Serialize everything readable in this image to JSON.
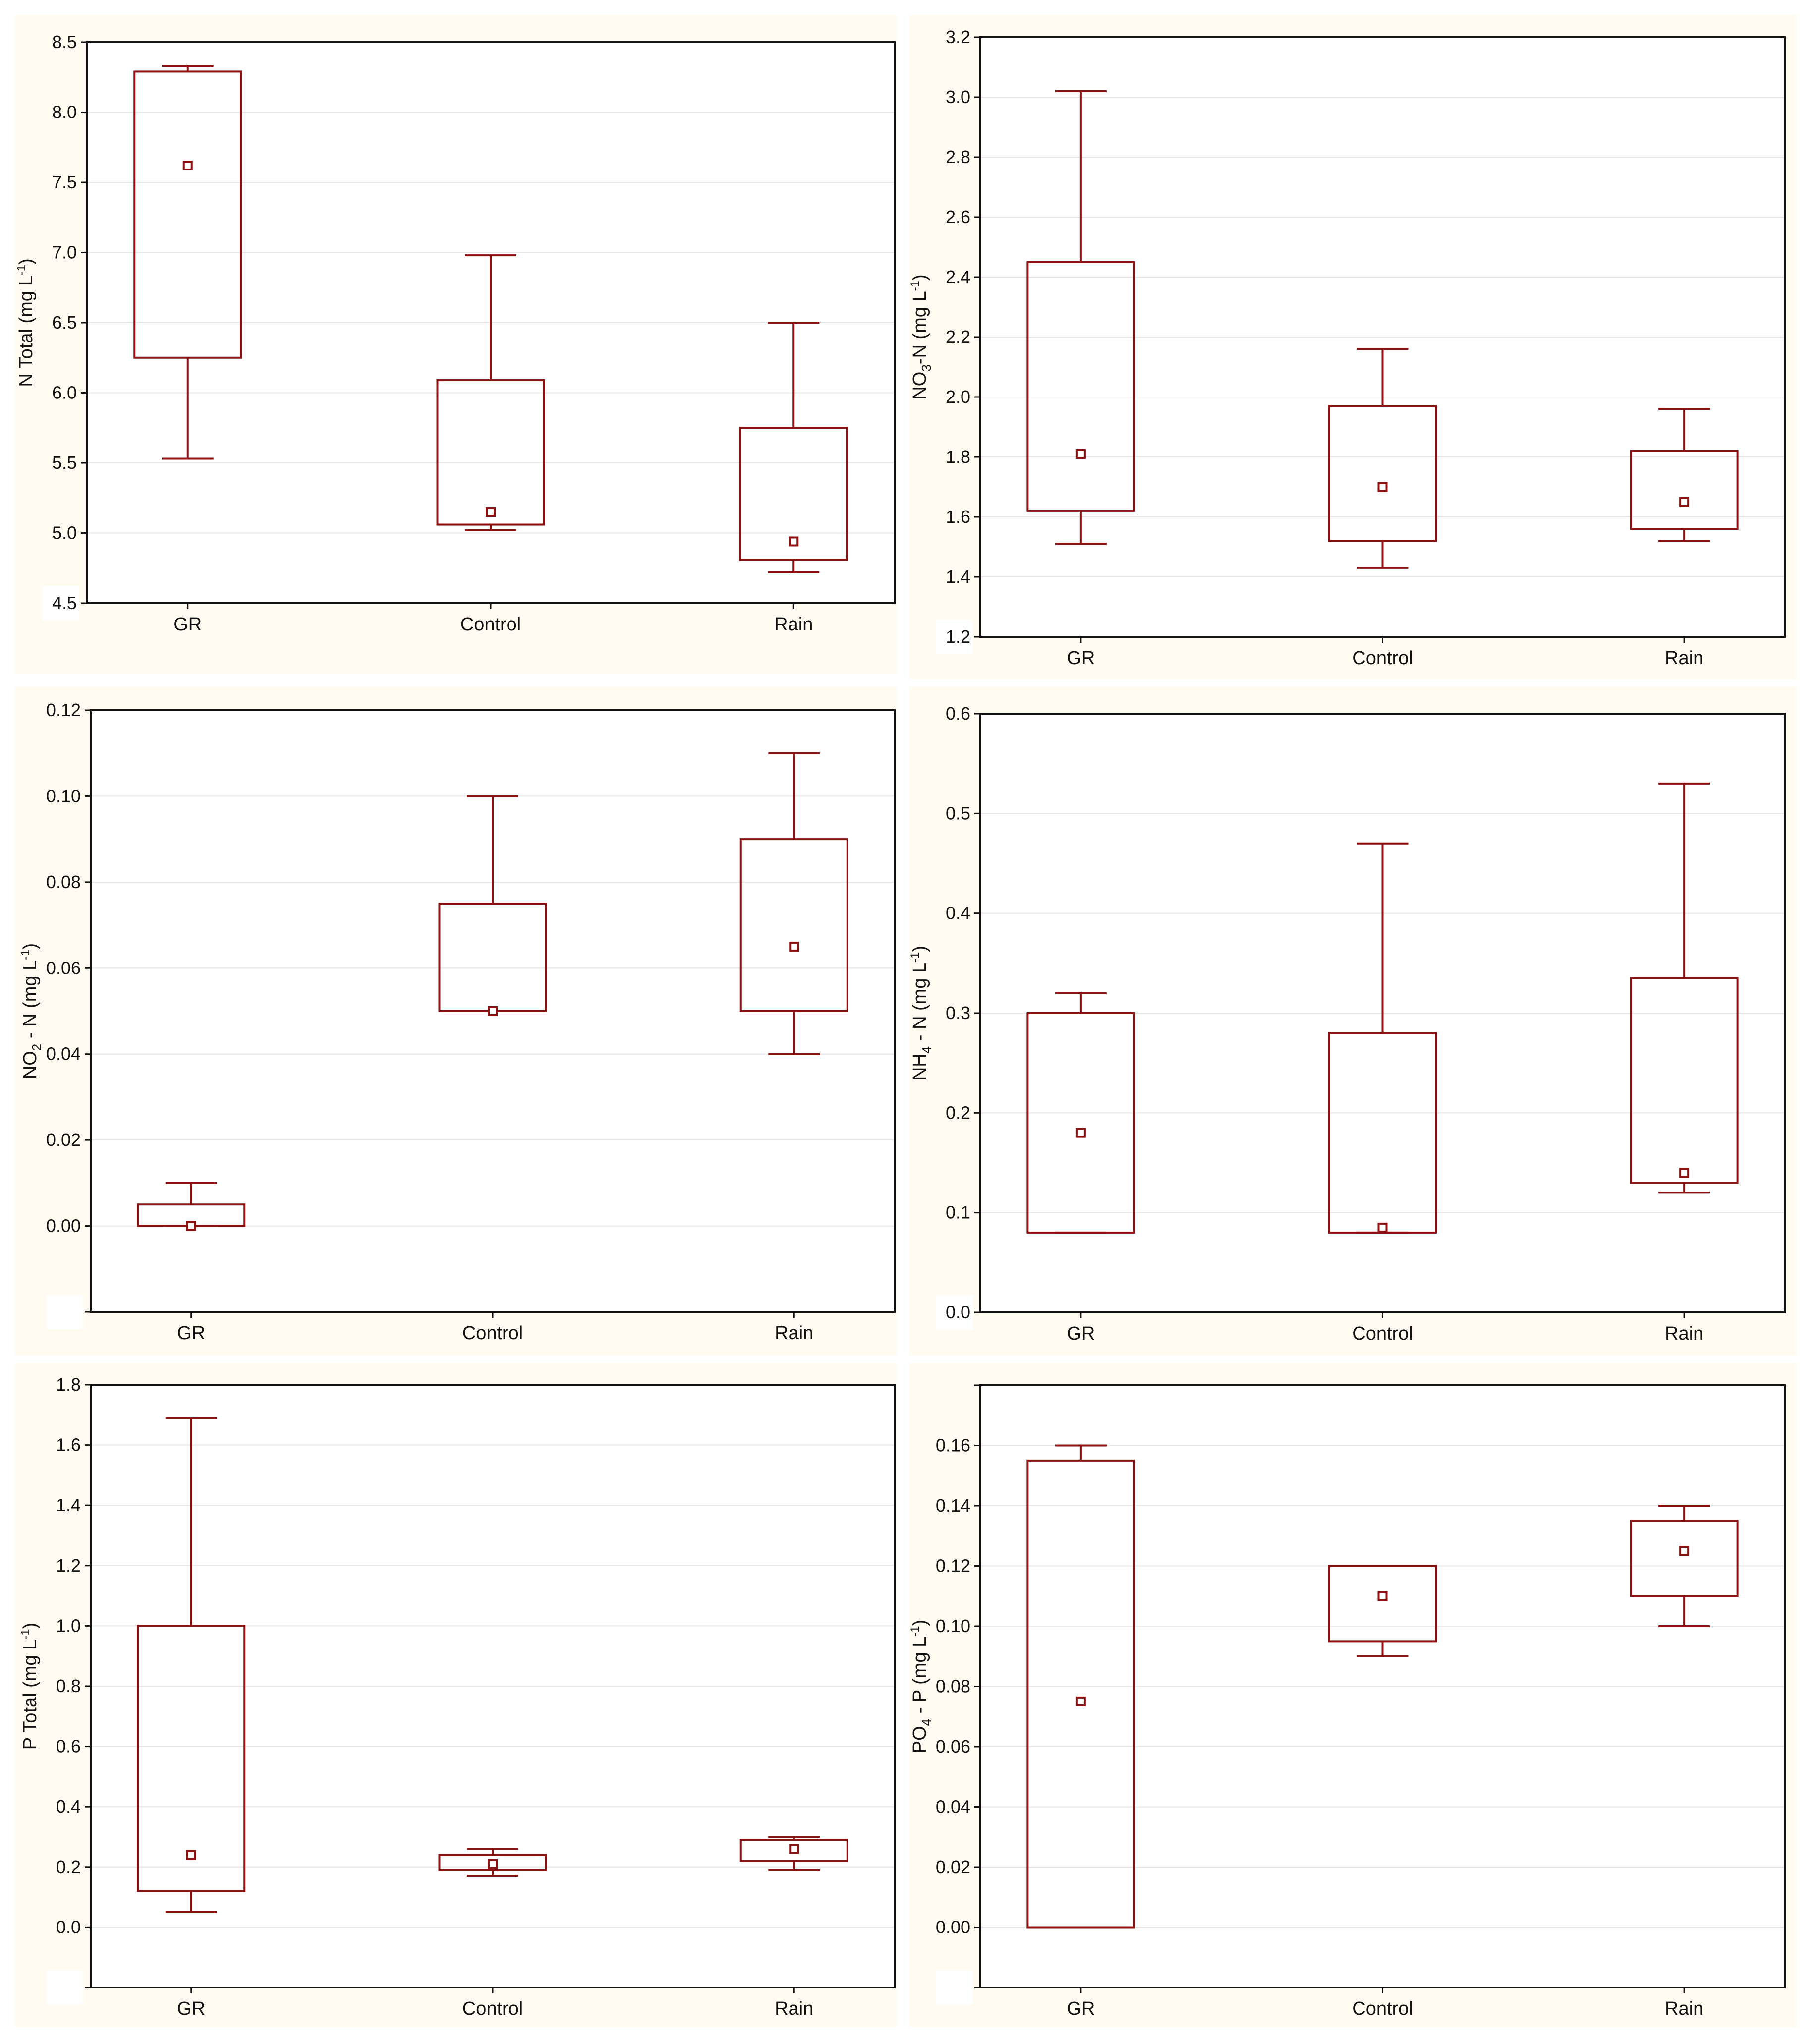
{
  "colors": {
    "box": "#8b1212",
    "panel_background": "#fffbf0",
    "axis": "#111111",
    "grid": "#e6e6e6"
  },
  "chart_data": [
    {
      "type": "box",
      "ylabel": {
        "pre": "N Total (mg L",
        "sup": "-1",
        "post": ")"
      },
      "categories": [
        "GR",
        "Control",
        "Rain"
      ],
      "ylim": [
        4.5,
        8.5
      ],
      "yticks": [
        "4.5",
        "5.0",
        "5.5",
        "6.0",
        "6.5",
        "7.0",
        "7.5",
        "8.0",
        "8.5"
      ],
      "grid": true,
      "boxes": [
        {
          "min": 5.53,
          "q1": 6.25,
          "median": 7.62,
          "q3": 8.29,
          "max": 8.33
        },
        {
          "min": 5.02,
          "q1": 5.06,
          "median": 5.15,
          "q3": 6.09,
          "max": 6.98
        },
        {
          "min": 4.72,
          "q1": 4.81,
          "median": 4.94,
          "q3": 5.75,
          "max": 6.5
        }
      ]
    },
    {
      "type": "box",
      "ylabel": {
        "pre": "NO",
        "sub": "3",
        "mid": "-N (mg L",
        "sup": "-1",
        "post": ")"
      },
      "categories": [
        "GR",
        "Control",
        "Rain"
      ],
      "ylim": [
        1.2,
        3.2
      ],
      "yticks": [
        "1.2",
        "1.4",
        "1.6",
        "1.8",
        "2.0",
        "2.2",
        "2.4",
        "2.6",
        "2.8",
        "3.0",
        "3.2"
      ],
      "grid": true,
      "boxes": [
        {
          "min": 1.51,
          "q1": 1.62,
          "median": 1.81,
          "q3": 2.45,
          "max": 3.02
        },
        {
          "min": 1.43,
          "q1": 1.52,
          "median": 1.7,
          "q3": 1.97,
          "max": 2.16
        },
        {
          "min": 1.52,
          "q1": 1.56,
          "median": 1.65,
          "q3": 1.82,
          "max": 1.96
        }
      ]
    },
    {
      "type": "box",
      "ylabel": {
        "pre": "NO",
        "sub": "2",
        "mid": " - N (mg L",
        "sup": "-1",
        "post": ")"
      },
      "categories": [
        "GR",
        "Control",
        "Rain"
      ],
      "ylim": [
        -0.02,
        0.12
      ],
      "yticks": [
        "",
        "0.00",
        "0.02",
        "0.04",
        "0.06",
        "0.08",
        "0.10",
        "0.12"
      ],
      "grid": true,
      "boxes": [
        {
          "min": 0.0,
          "q1": 0.0,
          "median": 0.0,
          "q3": 0.005,
          "max": 0.01
        },
        {
          "min": 0.05,
          "q1": 0.05,
          "median": 0.05,
          "q3": 0.075,
          "max": 0.1
        },
        {
          "min": 0.04,
          "q1": 0.05,
          "median": 0.065,
          "q3": 0.09,
          "max": 0.11
        }
      ]
    },
    {
      "type": "box",
      "ylabel": {
        "pre": "NH",
        "sub": "4",
        "mid": " - N (mg L",
        "sup": "-1",
        "post": ")"
      },
      "categories": [
        "GR",
        "Control",
        "Rain"
      ],
      "ylim": [
        0.0,
        0.6
      ],
      "yticks": [
        "0.0",
        "0.1",
        "0.2",
        "0.3",
        "0.4",
        "0.5",
        "0.6"
      ],
      "grid": true,
      "boxes": [
        {
          "min": 0.08,
          "q1": 0.08,
          "median": 0.18,
          "q3": 0.3,
          "max": 0.32
        },
        {
          "min": 0.08,
          "q1": 0.08,
          "median": 0.085,
          "q3": 0.28,
          "max": 0.47
        },
        {
          "min": 0.12,
          "q1": 0.13,
          "median": 0.14,
          "q3": 0.335,
          "max": 0.53
        }
      ]
    },
    {
      "type": "box",
      "ylabel": {
        "pre": "P Total (mg L",
        "sup": "-1",
        "post": ")"
      },
      "categories": [
        "GR",
        "Control",
        "Rain"
      ],
      "ylim": [
        -0.2,
        1.8
      ],
      "yticks": [
        "",
        "0.0",
        "0.2",
        "0.4",
        "0.6",
        "0.8",
        "1.0",
        "1.2",
        "1.4",
        "1.6",
        "1.8"
      ],
      "grid": true,
      "boxes": [
        {
          "min": 0.05,
          "q1": 0.12,
          "median": 0.24,
          "q3": 1.0,
          "max": 1.69
        },
        {
          "min": 0.17,
          "q1": 0.19,
          "median": 0.21,
          "q3": 0.24,
          "max": 0.26
        },
        {
          "min": 0.19,
          "q1": 0.22,
          "median": 0.26,
          "q3": 0.29,
          "max": 0.3
        }
      ]
    },
    {
      "type": "box",
      "ylabel": {
        "pre": "PO",
        "sub": "4",
        "mid": " - P (mg L",
        "sup": "-1",
        "post": ")"
      },
      "categories": [
        "GR",
        "Control",
        "Rain"
      ],
      "ylim": [
        -0.02,
        0.18
      ],
      "yticks": [
        "",
        "0.00",
        "0.02",
        "0.04",
        "0.06",
        "0.08",
        "0.10",
        "0.12",
        "0.14",
        "0.16",
        ""
      ],
      "grid": true,
      "boxes": [
        {
          "min": 0.0,
          "q1": 0.0,
          "median": 0.075,
          "q3": 0.155,
          "max": 0.16
        },
        {
          "min": 0.09,
          "q1": 0.095,
          "median": 0.11,
          "q3": 0.12,
          "max": 0.12
        },
        {
          "min": 0.1,
          "q1": 0.11,
          "median": 0.125,
          "q3": 0.135,
          "max": 0.14
        }
      ]
    }
  ]
}
